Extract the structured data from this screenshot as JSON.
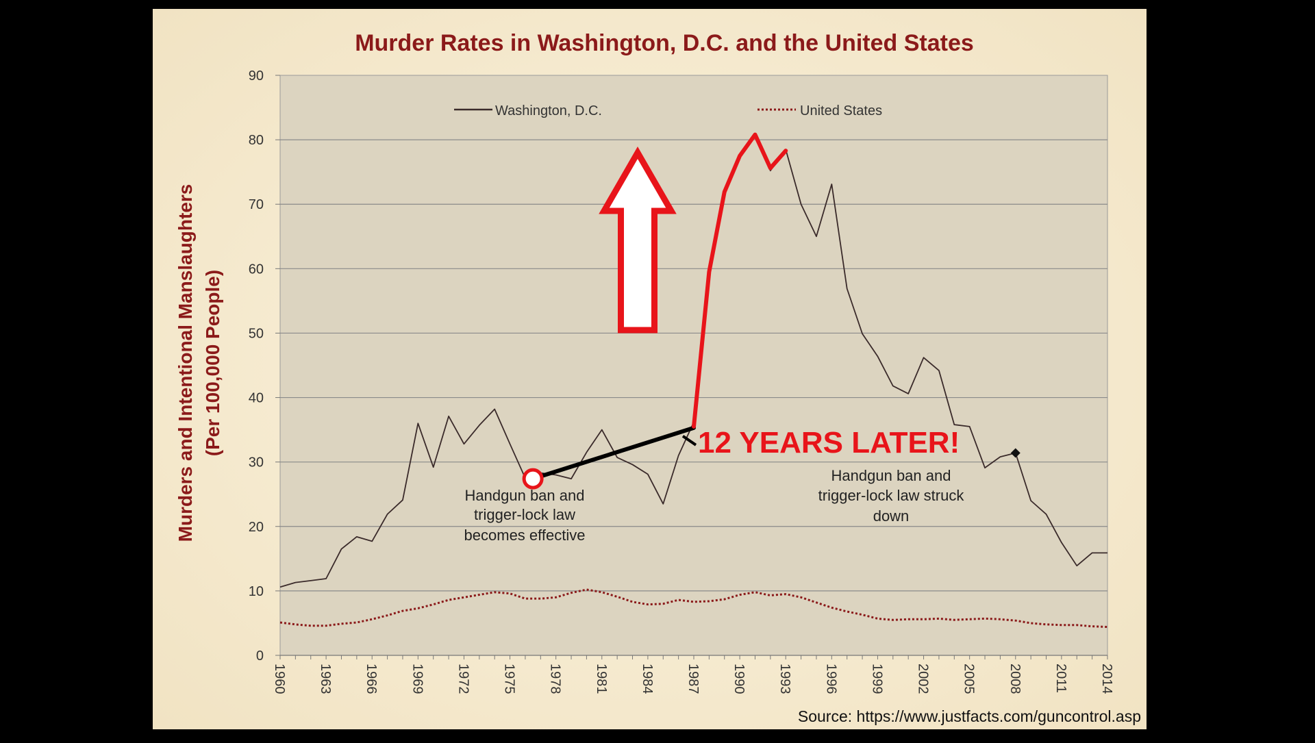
{
  "chart_data": {
    "type": "line",
    "title": "Murder Rates in Washington, D.C. and the United States",
    "ylabel_line1": "Murders and Intentional Manslaughters",
    "ylabel_line2": "(Per 100,000 People)",
    "xlabel": "",
    "ylim": [
      0,
      90
    ],
    "yticks": [
      0,
      10,
      20,
      30,
      40,
      50,
      60,
      70,
      80,
      90
    ],
    "xlim": [
      1960,
      2014
    ],
    "xticks": [
      "1960",
      "1963",
      "1966",
      "1969",
      "1972",
      "1975",
      "1978",
      "1981",
      "1984",
      "1987",
      "1990",
      "1993",
      "1996",
      "1999",
      "2002",
      "2005",
      "2008",
      "2011",
      "2014"
    ],
    "grid": true,
    "legend_position": "top",
    "series": [
      {
        "name": "Washington, D.C.",
        "color": "#3a2a2a",
        "style": "solid",
        "x": [
          1960,
          1961,
          1962,
          1963,
          1964,
          1965,
          1966,
          1967,
          1968,
          1969,
          1970,
          1971,
          1972,
          1973,
          1974,
          1975,
          1976,
          1977,
          1978,
          1979,
          1980,
          1981,
          1982,
          1983,
          1984,
          1985,
          1986,
          1987,
          1988,
          1989,
          1990,
          1991,
          1992,
          1993,
          1994,
          1995,
          1996,
          1997,
          1998,
          1999,
          2000,
          2001,
          2002,
          2003,
          2004,
          2005,
          2006,
          2007,
          2008,
          2009,
          2010,
          2011,
          2012,
          2013,
          2014
        ],
        "values": [
          10.6,
          11.3,
          11.6,
          11.9,
          16.5,
          18.4,
          17.7,
          21.9,
          24.1,
          36.0,
          29.2,
          37.1,
          32.8,
          35.7,
          38.2,
          32.8,
          27.5,
          28.3,
          28.0,
          27.4,
          31.5,
          35.0,
          30.7,
          29.6,
          28.1,
          23.5,
          31.0,
          36.2,
          59.5,
          71.9,
          77.8,
          80.6,
          75.2,
          78.5,
          70.0,
          65.0,
          73.1,
          56.9,
          49.9,
          46.4,
          41.8,
          40.6,
          46.2,
          44.2,
          35.8,
          35.5,
          29.1,
          30.8,
          31.4,
          24.0,
          21.9,
          17.5,
          13.9,
          15.9,
          15.9
        ]
      },
      {
        "name": "United States",
        "color": "#8b1a1a",
        "style": "dotted",
        "x": [
          1960,
          1961,
          1962,
          1963,
          1964,
          1965,
          1966,
          1967,
          1968,
          1969,
          1970,
          1971,
          1972,
          1973,
          1974,
          1975,
          1976,
          1977,
          1978,
          1979,
          1980,
          1981,
          1982,
          1983,
          1984,
          1985,
          1986,
          1987,
          1988,
          1989,
          1990,
          1991,
          1992,
          1993,
          1994,
          1995,
          1996,
          1997,
          1998,
          1999,
          2000,
          2001,
          2002,
          2003,
          2004,
          2005,
          2006,
          2007,
          2008,
          2009,
          2010,
          2011,
          2012,
          2013,
          2014
        ],
        "values": [
          5.1,
          4.8,
          4.6,
          4.6,
          4.9,
          5.1,
          5.6,
          6.2,
          6.9,
          7.3,
          7.9,
          8.6,
          9.0,
          9.4,
          9.8,
          9.6,
          8.8,
          8.8,
          9.0,
          9.7,
          10.2,
          9.8,
          9.1,
          8.3,
          7.9,
          8.0,
          8.6,
          8.3,
          8.4,
          8.7,
          9.4,
          9.8,
          9.3,
          9.5,
          9.0,
          8.2,
          7.4,
          6.8,
          6.3,
          5.7,
          5.5,
          5.6,
          5.6,
          5.7,
          5.5,
          5.6,
          5.7,
          5.6,
          5.4,
          5.0,
          4.8,
          4.7,
          4.7,
          4.5,
          4.4
        ]
      }
    ],
    "highlight_segment": {
      "name": "rise highlight",
      "color": "#e8141a",
      "x": [
        1987,
        1988,
        1989,
        1990,
        1991,
        1992,
        1993
      ],
      "values": [
        35.5,
        59.5,
        71.9,
        77.5,
        80.8,
        75.6,
        78.3
      ]
    },
    "connector": {
      "from_x": 1976.5,
      "from_value": 27.4,
      "to_x": 1987,
      "to_value": 35.3
    },
    "marker_2008": {
      "x": 2008,
      "value": 31.4
    }
  },
  "annotations": {
    "ban_effective_line1": "Handgun ban and",
    "ban_effective_line2": "trigger-lock law",
    "ban_effective_line3": "becomes effective",
    "struck_down_line1": "Handgun ban and",
    "struck_down_line2": "trigger-lock law struck",
    "struck_down_line3": "down",
    "years_later": "12 YEARS LATER!",
    "source": "Source: https://www.justfacts.com/guncontrol.asp"
  },
  "colors": {
    "panel_bg": "#f6ecd2",
    "plot_bg": "#dcd4c0",
    "grid": "#8a8a8a",
    "title": "#8b1a1a",
    "accent_red": "#e8141a"
  }
}
